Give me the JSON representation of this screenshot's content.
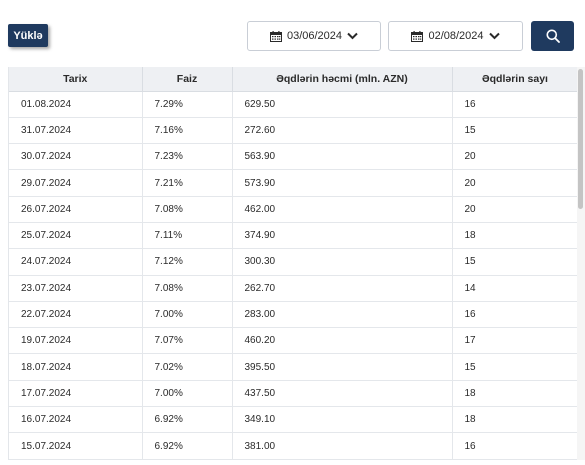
{
  "toolbar": {
    "upload_label": "Yüklə",
    "date_from": "03/06/2024",
    "date_to": "02/08/2024"
  },
  "table": {
    "headers": [
      "Tarix",
      "Faiz",
      "Əqdlərin həcmi (mln. AZN)",
      "Əqdlərin sayı"
    ],
    "rows": [
      [
        "01.08.2024",
        "7.29%",
        "629.50",
        "16"
      ],
      [
        "31.07.2024",
        "7.16%",
        "272.60",
        "15"
      ],
      [
        "30.07.2024",
        "7.23%",
        "563.90",
        "20"
      ],
      [
        "29.07.2024",
        "7.21%",
        "573.90",
        "20"
      ],
      [
        "26.07.2024",
        "7.08%",
        "462.00",
        "20"
      ],
      [
        "25.07.2024",
        "7.11%",
        "374.90",
        "18"
      ],
      [
        "24.07.2024",
        "7.12%",
        "300.30",
        "15"
      ],
      [
        "23.07.2024",
        "7.08%",
        "262.70",
        "14"
      ],
      [
        "22.07.2024",
        "7.00%",
        "283.00",
        "16"
      ],
      [
        "19.07.2024",
        "7.07%",
        "460.20",
        "17"
      ],
      [
        "18.07.2024",
        "7.02%",
        "395.50",
        "15"
      ],
      [
        "17.07.2024",
        "7.00%",
        "437.50",
        "18"
      ],
      [
        "16.07.2024",
        "6.92%",
        "349.10",
        "18"
      ],
      [
        "15.07.2024",
        "6.92%",
        "381.00",
        "16"
      ]
    ]
  },
  "icons": {
    "calendar": "calendar-icon",
    "chevron": "chevron-down-icon",
    "search": "search-icon"
  },
  "colors": {
    "accent": "#1f3a5f",
    "header_bg": "#eef0f3"
  }
}
